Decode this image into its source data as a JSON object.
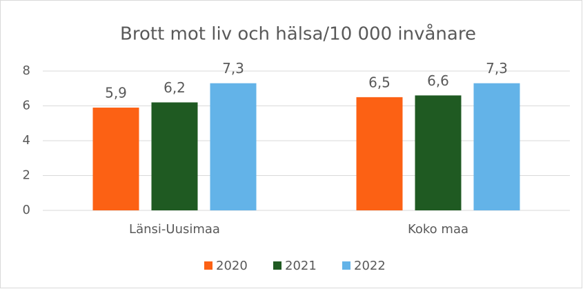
{
  "chart_data": {
    "type": "bar",
    "title": "Brott mot liv och hälsa/10 000 invånare",
    "categories": [
      "Länsi-Uusimaa",
      "Koko maa"
    ],
    "series": [
      {
        "name": "2020",
        "color": "#fc6114",
        "values": [
          5.9,
          6.5
        ],
        "value_labels": [
          "5,9",
          "6,5"
        ]
      },
      {
        "name": "2021",
        "color": "#1f5a22",
        "values": [
          6.2,
          6.6
        ],
        "value_labels": [
          "6,2",
          "6,6"
        ]
      },
      {
        "name": "2022",
        "color": "#63b3e8",
        "values": [
          7.3,
          7.3
        ],
        "value_labels": [
          "7,3",
          "7,3"
        ]
      }
    ],
    "ylim": [
      0,
      8
    ],
    "yticks": [
      0,
      2,
      4,
      6,
      8
    ],
    "grid": true,
    "legend": "bottom"
  }
}
